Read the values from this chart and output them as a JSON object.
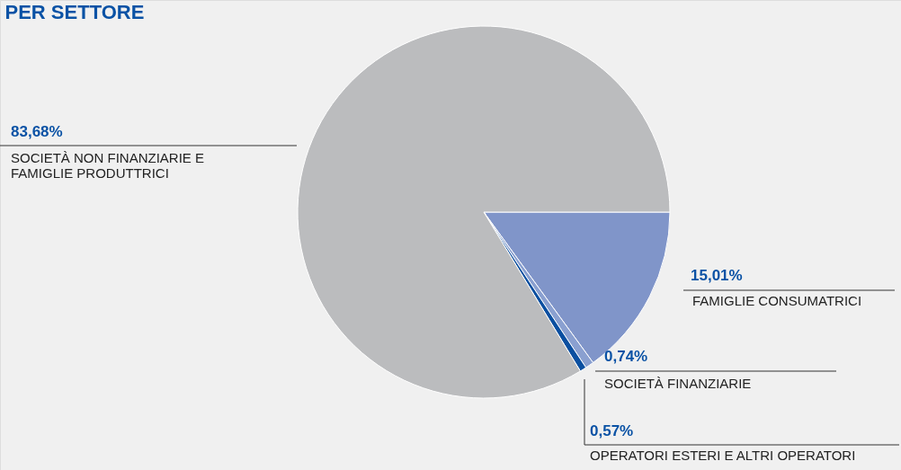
{
  "chart_data": {
    "type": "pie",
    "title": "PER SETTORE",
    "categories": [
      "FAMIGLIE CONSUMATRICI",
      "SOCIETÀ FINANZIARIE",
      "OPERATORI ESTERI E ALTRI OPERATORI",
      "SOCIETÀ NON FINANZIARIE E\nFAMIGLIE PRODUTTRICI"
    ],
    "values": [
      15.01,
      0.74,
      0.57,
      83.68
    ],
    "colors": [
      "#8095c9",
      "#8aa0d0",
      "#0a4fa0",
      "#bbbcbe"
    ],
    "value_labels": [
      "15,01%",
      "0,74%",
      "0,57%",
      "83,68%"
    ],
    "legend": false
  }
}
